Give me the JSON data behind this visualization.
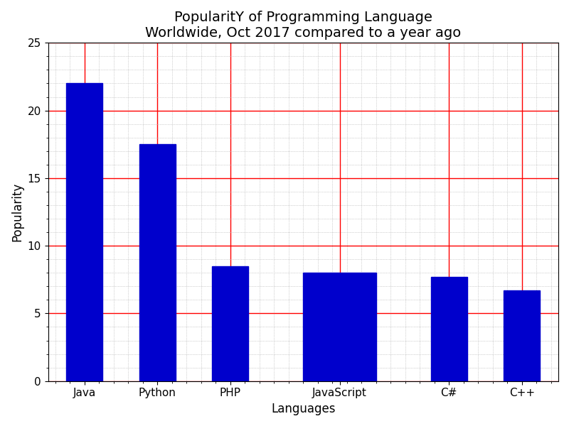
{
  "title": "PopularitY of Programming Language\nWorldwide, Oct 2017 compared to a year ago",
  "xlabel": "Languages",
  "ylabel": "Popularity",
  "categories": [
    "Java",
    "Python",
    "PHP",
    "JavaScript",
    "C#",
    "C++"
  ],
  "values": [
    22,
    17.5,
    8.5,
    8.0,
    7.7,
    6.7
  ],
  "positions": [
    1,
    2,
    3,
    4.5,
    6,
    7
  ],
  "bar_widths": [
    0.5,
    0.5,
    0.5,
    1.0,
    0.5,
    0.5
  ],
  "bar_color": "#0000cc",
  "bar_edgecolor": "#0000cc",
  "ylim": [
    0,
    25
  ],
  "yticks": [
    0,
    5,
    10,
    15,
    20,
    25
  ],
  "grid_color_major": "#ff0000",
  "grid_color_minor": "#aaaaaa",
  "title_fontsize": 14,
  "axis_label_fontsize": 12,
  "tick_fontsize": 11,
  "background_color": "#ffffff"
}
